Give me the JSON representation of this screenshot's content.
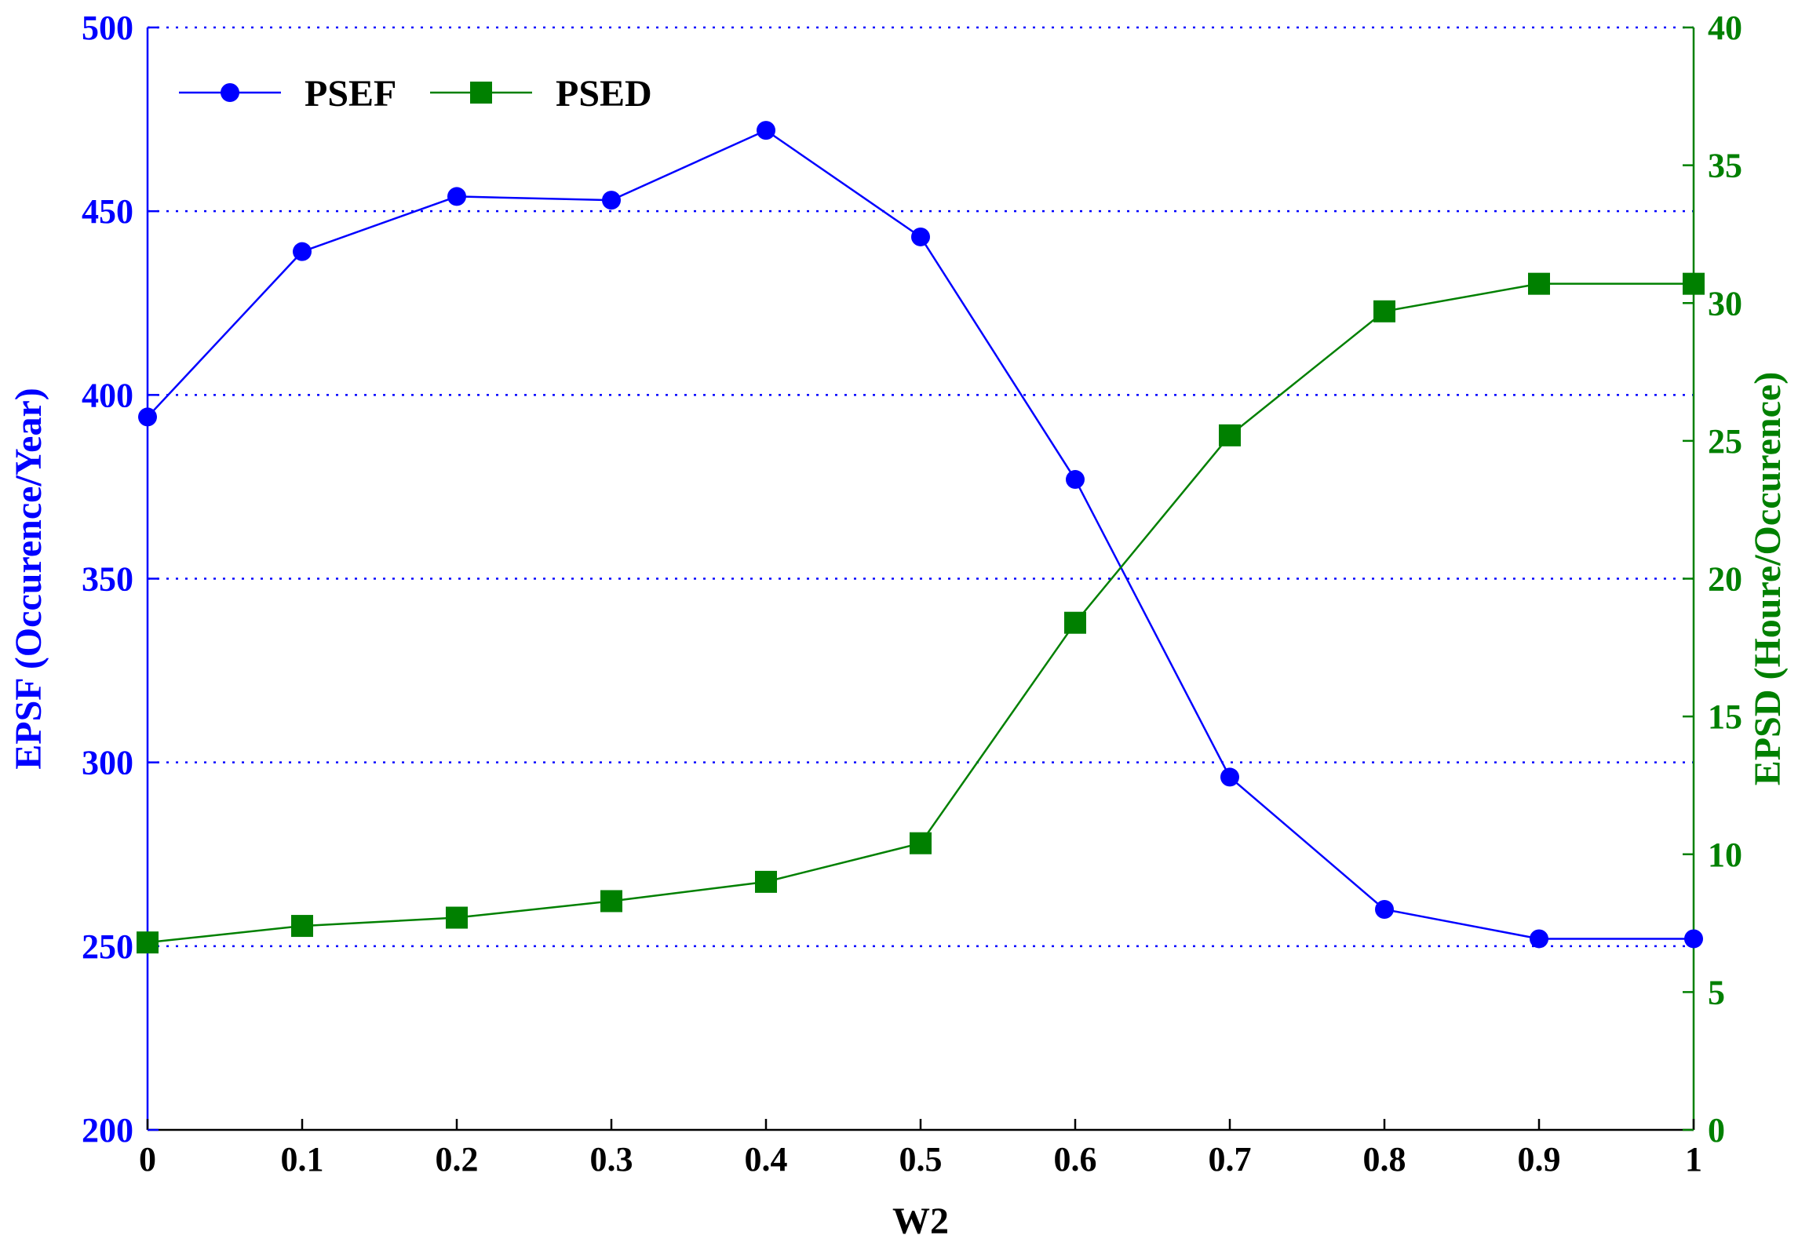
{
  "chart_data": {
    "type": "line",
    "title": "",
    "xlabel": "W2",
    "ylabel_left": "EPSF (Occurence/Year)",
    "ylabel_right": "EPSD (Houre/Occurence)",
    "x": [
      0,
      0.1,
      0.2,
      0.3,
      0.4,
      0.5,
      0.6,
      0.7,
      0.8,
      0.9,
      1
    ],
    "x_tick_labels": [
      "0",
      "0.1",
      "0.2",
      "0.3",
      "0.4",
      "0.5",
      "0.6",
      "0.7",
      "0.8",
      "0.9",
      "1"
    ],
    "xlim": [
      0,
      1
    ],
    "ylim_left": [
      200,
      500
    ],
    "ylim_right": [
      0,
      40
    ],
    "y_left_tick_labels": [
      "200",
      "250",
      "300",
      "350",
      "400",
      "450",
      "500"
    ],
    "y_left_ticks": [
      200,
      250,
      300,
      350,
      400,
      450,
      500
    ],
    "y_right_tick_labels": [
      "0",
      "5",
      "10",
      "15",
      "20",
      "25",
      "30",
      "35",
      "40"
    ],
    "y_right_ticks": [
      0,
      5,
      10,
      15,
      20,
      25,
      30,
      35,
      40
    ],
    "grid": "horizontal-dotted",
    "legend_position": "top-left",
    "series": [
      {
        "name": "PSEF",
        "axis": "left",
        "color": "#0000ff",
        "marker": "circle",
        "values": [
          394,
          439,
          454,
          453,
          472,
          443,
          377,
          296,
          260,
          252,
          252
        ]
      },
      {
        "name": "PSED",
        "axis": "right",
        "color": "#008000",
        "marker": "square",
        "values": [
          6.8,
          7.4,
          7.7,
          8.3,
          9.0,
          10.4,
          18.4,
          25.2,
          29.7,
          30.7,
          30.7
        ]
      }
    ]
  }
}
